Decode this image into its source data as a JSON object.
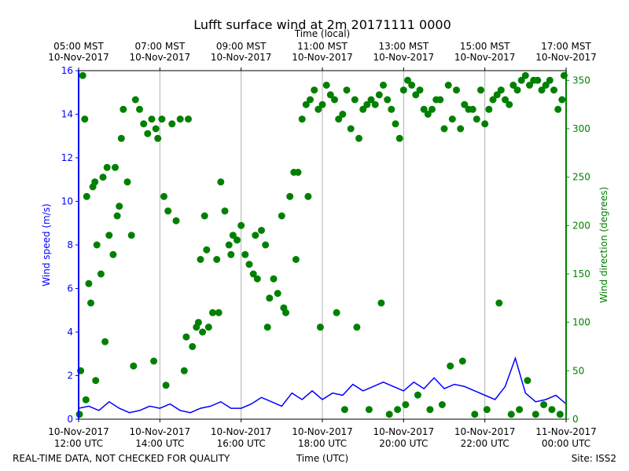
{
  "chart_data": {
    "type": "scatter",
    "title": "Lufft surface wind at 2m 20171111 0000",
    "top_axis_label": "Time (local)",
    "xlabel": "Time (UTC)",
    "ylabel_left": "Wind speed (m/s)",
    "ylabel_right": "Wind direction (degrees)",
    "footer_left": "REAL-TIME DATA, NOT CHECKED FOR QUALITY",
    "footer_right": "Site: ISS2",
    "x_range_hours": [
      12,
      24
    ],
    "y_left_range": [
      0,
      16
    ],
    "y_right_range": [
      0,
      360
    ],
    "y_left_ticks": [
      "0",
      "2",
      "4",
      "6",
      "8",
      "10",
      "12",
      "14",
      "16"
    ],
    "y_right_ticks": [
      "0",
      "50",
      "100",
      "150",
      "200",
      "250",
      "300",
      "350"
    ],
    "bottom_ticks": [
      {
        "hour": 12,
        "line1": "10-Nov-2017",
        "line2": "12:00 UTC"
      },
      {
        "hour": 14,
        "line1": "10-Nov-2017",
        "line2": "14:00 UTC"
      },
      {
        "hour": 16,
        "line1": "10-Nov-2017",
        "line2": "16:00 UTC"
      },
      {
        "hour": 18,
        "line1": "10-Nov-2017",
        "line2": "18:00 UTC"
      },
      {
        "hour": 20,
        "line1": "10-Nov-2017",
        "line2": "20:00 UTC"
      },
      {
        "hour": 22,
        "line1": "10-Nov-2017",
        "line2": "22:00 UTC"
      },
      {
        "hour": 24,
        "line1": "11-Nov-2017",
        "line2": "00:00 UTC"
      }
    ],
    "top_ticks": [
      {
        "hour": 12,
        "line1": "05:00 MST",
        "line2": "10-Nov-2017"
      },
      {
        "hour": 14,
        "line1": "07:00 MST",
        "line2": "10-Nov-2017"
      },
      {
        "hour": 16,
        "line1": "09:00 MST",
        "line2": "10-Nov-2017"
      },
      {
        "hour": 18,
        "line1": "11:00 MST",
        "line2": "10-Nov-2017"
      },
      {
        "hour": 20,
        "line1": "13:00 MST",
        "line2": "10-Nov-2017"
      },
      {
        "hour": 22,
        "line1": "15:00 MST",
        "line2": "10-Nov-2017"
      },
      {
        "hour": 24,
        "line1": "17:00 MST",
        "line2": "10-Nov-2017"
      }
    ],
    "colors": {
      "speed": "#0000ff",
      "direction": "#008000",
      "grid": "#b0b0b0"
    },
    "series": [
      {
        "name": "Wind speed (m/s)",
        "axis": "left",
        "style": "line",
        "x_hours": [
          12.0,
          12.25,
          12.5,
          12.75,
          13.0,
          13.25,
          13.5,
          13.75,
          14.0,
          14.25,
          14.5,
          14.75,
          15.0,
          15.25,
          15.5,
          15.75,
          16.0,
          16.25,
          16.5,
          16.75,
          17.0,
          17.25,
          17.5,
          17.75,
          18.0,
          18.25,
          18.5,
          18.75,
          19.0,
          19.25,
          19.5,
          19.75,
          20.0,
          20.25,
          20.5,
          20.75,
          21.0,
          21.25,
          21.5,
          21.75,
          22.0,
          22.25,
          22.5,
          22.75,
          23.0,
          23.25,
          23.5,
          23.75,
          24.0
        ],
        "values": [
          0.5,
          0.6,
          0.4,
          0.8,
          0.5,
          0.3,
          0.4,
          0.6,
          0.5,
          0.7,
          0.4,
          0.3,
          0.5,
          0.6,
          0.8,
          0.5,
          0.5,
          0.7,
          1.0,
          0.8,
          0.6,
          1.2,
          0.9,
          1.3,
          0.9,
          1.2,
          1.1,
          1.6,
          1.3,
          1.5,
          1.7,
          1.5,
          1.3,
          1.7,
          1.4,
          1.9,
          1.4,
          1.6,
          1.5,
          1.3,
          1.1,
          0.9,
          1.5,
          2.8,
          1.2,
          0.8,
          0.9,
          1.1,
          0.7
        ]
      },
      {
        "name": "Wind direction (degrees)",
        "axis": "right",
        "style": "markers",
        "x_hours": [
          12.05,
          12.1,
          12.15,
          12.2,
          12.25,
          12.3,
          12.35,
          12.4,
          12.45,
          12.55,
          12.6,
          12.7,
          12.75,
          12.85,
          12.9,
          12.95,
          13.0,
          13.05,
          13.1,
          13.2,
          13.3,
          13.4,
          13.5,
          13.6,
          13.7,
          13.8,
          13.9,
          13.95,
          14.05,
          14.1,
          14.2,
          14.3,
          14.4,
          14.5,
          14.6,
          14.7,
          14.8,
          14.9,
          14.95,
          15.0,
          15.1,
          15.15,
          15.2,
          15.3,
          15.4,
          15.5,
          15.6,
          15.7,
          15.8,
          15.9,
          16.0,
          16.1,
          16.2,
          16.3,
          16.4,
          16.5,
          16.6,
          16.7,
          16.8,
          16.9,
          17.0,
          17.1,
          17.2,
          17.3,
          17.4,
          17.5,
          17.6,
          17.7,
          17.8,
          17.9,
          18.0,
          18.1,
          18.2,
          18.3,
          18.4,
          18.5,
          18.6,
          18.7,
          18.8,
          18.9,
          19.0,
          19.1,
          19.2,
          19.3,
          19.4,
          19.5,
          19.6,
          19.7,
          19.8,
          19.9,
          20.0,
          20.1,
          20.2,
          20.3,
          20.4,
          20.5,
          20.6,
          20.7,
          20.8,
          20.9,
          21.0,
          21.1,
          21.2,
          21.3,
          21.4,
          21.5,
          21.6,
          21.7,
          21.8,
          21.9,
          22.0,
          22.1,
          22.2,
          22.3,
          22.4,
          22.5,
          22.6,
          22.7,
          22.8,
          22.9,
          23.0,
          23.1,
          23.2,
          23.3,
          23.4,
          23.5,
          23.6,
          23.7,
          23.8,
          23.9,
          23.95,
          12.02,
          12.18,
          12.42,
          12.65,
          13.35,
          13.85,
          14.15,
          14.65,
          15.05,
          15.45,
          15.75,
          16.35,
          16.65,
          17.05,
          17.35,
          17.65,
          17.95,
          18.35,
          18.55,
          18.85,
          19.15,
          19.45,
          19.65,
          19.85,
          20.05,
          20.35,
          20.65,
          20.95,
          21.15,
          21.45,
          21.75,
          22.05,
          22.35,
          22.65,
          22.85,
          23.05,
          23.25,
          23.45,
          23.65,
          23.85
        ],
        "values": [
          50,
          355,
          310,
          230,
          140,
          120,
          240,
          245,
          180,
          150,
          250,
          260,
          190,
          170,
          260,
          210,
          220,
          290,
          320,
          245,
          190,
          330,
          320,
          305,
          295,
          310,
          300,
          290,
          310,
          230,
          215,
          305,
          205,
          310,
          50,
          310,
          75,
          95,
          100,
          165,
          210,
          175,
          95,
          110,
          165,
          245,
          215,
          180,
          190,
          185,
          200,
          170,
          160,
          150,
          145,
          195,
          180,
          125,
          145,
          130,
          210,
          110,
          230,
          255,
          255,
          310,
          325,
          330,
          340,
          320,
          325,
          345,
          335,
          330,
          310,
          315,
          340,
          300,
          330,
          290,
          320,
          325,
          330,
          325,
          335,
          345,
          330,
          320,
          305,
          290,
          340,
          350,
          345,
          335,
          340,
          320,
          315,
          320,
          330,
          330,
          300,
          345,
          310,
          340,
          300,
          325,
          320,
          320,
          310,
          340,
          305,
          320,
          330,
          335,
          340,
          330,
          325,
          345,
          340,
          350,
          355,
          345,
          350,
          350,
          340,
          345,
          350,
          340,
          320,
          330,
          355,
          5,
          20,
          40,
          80,
          55,
          60,
          35,
          85,
          90,
          110,
          170,
          190,
          95,
          115,
          165,
          230,
          95,
          110,
          10,
          95,
          10,
          120,
          5,
          10,
          15,
          25,
          10,
          15,
          55,
          60,
          5,
          10,
          120,
          5,
          10,
          40,
          5,
          15,
          10,
          5
        ]
      }
    ]
  }
}
